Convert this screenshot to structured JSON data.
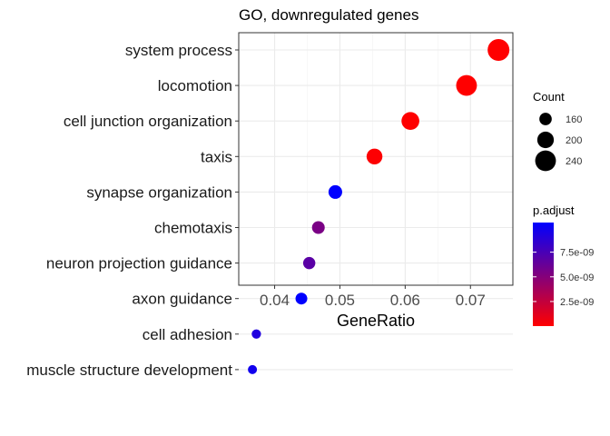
{
  "chart_data": {
    "type": "scatter",
    "title": "GO, downregulated genes",
    "xlabel": "GeneRatio",
    "ylabel": "",
    "xlim": [
      0.0345,
      0.0765
    ],
    "xticks": [
      "0.04",
      "0.05",
      "0.06",
      "0.07"
    ],
    "xtick_values": [
      0.04,
      0.05,
      0.06,
      0.07
    ],
    "grid": true,
    "categories": [
      "system process",
      "locomotion",
      "cell junction organization",
      "taxis",
      "synapse organization",
      "chemotaxis",
      "neuron projection guidance",
      "axon guidance",
      "cell adhesion",
      "muscle structure development"
    ],
    "points": [
      {
        "term": "system process",
        "gene_ratio": 0.0743,
        "count": 250,
        "p_adjust": 1e-11
      },
      {
        "term": "locomotion",
        "gene_ratio": 0.0694,
        "count": 240,
        "p_adjust": 1e-11
      },
      {
        "term": "cell junction organization",
        "gene_ratio": 0.0608,
        "count": 212,
        "p_adjust": 5e-11
      },
      {
        "term": "taxis",
        "gene_ratio": 0.0553,
        "count": 193,
        "p_adjust": 1e-10
      },
      {
        "term": "synapse organization",
        "gene_ratio": 0.0493,
        "count": 172,
        "p_adjust": 1.05e-08
      },
      {
        "term": "chemotaxis",
        "gene_ratio": 0.0467,
        "count": 163,
        "p_adjust": 5.5e-09
      },
      {
        "term": "neuron projection guidance",
        "gene_ratio": 0.0453,
        "count": 158,
        "p_adjust": 6.8e-09
      },
      {
        "term": "axon guidance",
        "gene_ratio": 0.0441,
        "count": 154,
        "p_adjust": 1.05e-08
      },
      {
        "term": "cell adhesion",
        "gene_ratio": 0.0372,
        "count": 130,
        "p_adjust": 9.2e-09
      },
      {
        "term": "muscle structure development",
        "gene_ratio": 0.0366,
        "count": 128,
        "p_adjust": 9.8e-09
      }
    ],
    "legend_size": {
      "title": "Count",
      "labels": [
        "160",
        "200",
        "240"
      ],
      "values": [
        160,
        200,
        240
      ]
    },
    "legend_color": {
      "title": "p.adjust",
      "labels": [
        "7.5e-09",
        "5.0e-09",
        "2.5e-09"
      ],
      "values": [
        7.5e-09,
        5e-09,
        2.5e-09
      ],
      "range": [
        1e-11,
        1.05e-08
      ],
      "low_color": "#ff0000",
      "high_color": "#0000ff"
    },
    "legend_position": "right"
  }
}
